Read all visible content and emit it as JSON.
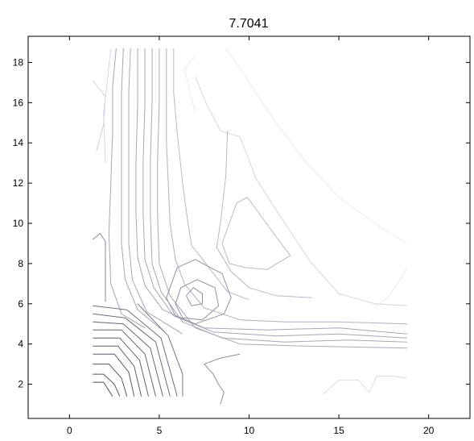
{
  "chart_data": {
    "type": "contour",
    "title": "7.7041",
    "xlabel": "",
    "ylabel": "",
    "xlim": [
      -2.3,
      22.3
    ],
    "ylim": [
      0.3,
      19.3
    ],
    "xticks": [
      0,
      5,
      10,
      15,
      20
    ],
    "yticks": [
      2,
      4,
      6,
      8,
      10,
      12,
      14,
      16,
      18
    ],
    "grid": false,
    "line_color_dark": "#505060",
    "line_color_light": "#e4eaf6",
    "contours": [
      {
        "level": 1,
        "points": [
          [
            1.3,
            17.1
          ],
          [
            2.0,
            16.3
          ],
          [
            1.9,
            14.9
          ],
          [
            1.5,
            13.6
          ]
        ]
      },
      {
        "level": 2,
        "points": [
          [
            1.3,
            9.2
          ],
          [
            1.7,
            9.5
          ],
          [
            2.0,
            9.1
          ],
          [
            2.0,
            7.6
          ],
          [
            2.0,
            6.1
          ]
        ]
      },
      {
        "level": 3,
        "points": [
          [
            2.3,
            18.7
          ],
          [
            2.1,
            17.0
          ],
          [
            1.9,
            15.5
          ],
          [
            2.0,
            13.0
          ]
        ]
      },
      {
        "level": 4,
        "points": [
          [
            2.6,
            18.7
          ],
          [
            2.4,
            16.8
          ],
          [
            2.4,
            14.5
          ],
          [
            2.3,
            12.0
          ],
          [
            2.2,
            9.5
          ],
          [
            2.3,
            7.0
          ],
          [
            2.9,
            5.5
          ],
          [
            4.2,
            4.8
          ]
        ]
      },
      {
        "level": 5,
        "points": [
          [
            3.0,
            18.7
          ],
          [
            2.9,
            16.5
          ],
          [
            2.9,
            14.0
          ],
          [
            2.9,
            11.5
          ],
          [
            2.9,
            9.0
          ],
          [
            3.1,
            7.2
          ],
          [
            3.8,
            5.7
          ],
          [
            5.3,
            4.6
          ]
        ]
      },
      {
        "level": 6,
        "points": [
          [
            3.4,
            18.7
          ],
          [
            3.3,
            16.5
          ],
          [
            3.3,
            14.0
          ],
          [
            3.3,
            11.5
          ],
          [
            3.3,
            9.0
          ],
          [
            3.5,
            7.2
          ],
          [
            4.3,
            5.6
          ],
          [
            6.3,
            4.5
          ]
        ]
      },
      {
        "level": 7,
        "points": [
          [
            3.8,
            18.7
          ],
          [
            3.8,
            16.0
          ],
          [
            3.7,
            13.0
          ],
          [
            3.7,
            10.5
          ],
          [
            3.8,
            8.3
          ],
          [
            4.2,
            6.9
          ],
          [
            5.2,
            5.7
          ],
          [
            7.5,
            4.8
          ],
          [
            11.0,
            4.7
          ],
          [
            15.0,
            4.8
          ],
          [
            18.8,
            4.5
          ]
        ]
      },
      {
        "level": 8,
        "points": [
          [
            4.2,
            18.7
          ],
          [
            4.2,
            16.0
          ],
          [
            4.1,
            13.0
          ],
          [
            4.1,
            10.5
          ],
          [
            4.2,
            8.2
          ],
          [
            4.7,
            6.8
          ],
          [
            5.8,
            5.4
          ],
          [
            8.0,
            4.6
          ],
          [
            11.5,
            4.4
          ],
          [
            15.0,
            4.5
          ],
          [
            18.8,
            4.3
          ]
        ]
      },
      {
        "level": 9,
        "points": [
          [
            4.6,
            18.7
          ],
          [
            4.6,
            16.0
          ],
          [
            4.5,
            13.0
          ],
          [
            4.5,
            10.5
          ],
          [
            4.6,
            8.0
          ],
          [
            5.1,
            6.6
          ],
          [
            6.3,
            5.1
          ],
          [
            8.5,
            4.3
          ],
          [
            12.0,
            4.1
          ],
          [
            15.5,
            4.2
          ],
          [
            18.8,
            4.1
          ]
        ]
      },
      {
        "level": 10,
        "points": [
          [
            5.0,
            18.7
          ],
          [
            5.0,
            16.0
          ],
          [
            4.9,
            13.0
          ],
          [
            4.9,
            10.5
          ],
          [
            5.0,
            8.0
          ],
          [
            5.6,
            6.4
          ],
          [
            7.0,
            4.8
          ],
          [
            9.5,
            4.0
          ],
          [
            13.0,
            3.9
          ],
          [
            18.8,
            3.8
          ]
        ]
      },
      {
        "level": 11,
        "points": [
          [
            5.4,
            18.7
          ],
          [
            5.4,
            16.5
          ],
          [
            5.4,
            14.0
          ],
          [
            5.5,
            12.0
          ],
          [
            5.6,
            10.0
          ],
          [
            5.9,
            8.2
          ],
          [
            6.4,
            7.0
          ],
          [
            7.5,
            5.8
          ],
          [
            9.5,
            5.2
          ],
          [
            12.0,
            5.1
          ],
          [
            15.0,
            5.1
          ],
          [
            18.8,
            5.0
          ]
        ]
      },
      {
        "level": 12,
        "points": [
          [
            5.8,
            18.7
          ],
          [
            5.8,
            16.5
          ],
          [
            6.0,
            14.5
          ],
          [
            6.3,
            12.0
          ],
          [
            6.6,
            10.0
          ],
          [
            6.8,
            8.9
          ],
          [
            7.6,
            8.0
          ],
          [
            8.8,
            6.6
          ],
          [
            10.0,
            6.2
          ]
        ]
      },
      {
        "level": 13,
        "points": [
          [
            6.5,
            6.4
          ],
          [
            6.8,
            5.9
          ],
          [
            7.4,
            6.0
          ],
          [
            7.4,
            6.5
          ],
          [
            6.9,
            6.8
          ],
          [
            6.5,
            6.4
          ]
        ]
      },
      {
        "level": 14,
        "points": [
          [
            5.9,
            6.0
          ],
          [
            6.3,
            5.3
          ],
          [
            7.4,
            5.2
          ],
          [
            8.3,
            5.9
          ],
          [
            8.1,
            6.8
          ],
          [
            7.1,
            7.2
          ],
          [
            6.2,
            6.8
          ],
          [
            5.9,
            6.0
          ]
        ]
      },
      {
        "level": 15,
        "points": [
          [
            5.4,
            6.3
          ],
          [
            5.9,
            5.4
          ],
          [
            7.0,
            5.0
          ],
          [
            8.6,
            5.5
          ],
          [
            9.0,
            6.3
          ],
          [
            8.5,
            7.5
          ],
          [
            7.0,
            8.2
          ],
          [
            6.0,
            7.8
          ],
          [
            5.4,
            6.3
          ]
        ]
      },
      {
        "level": 16,
        "points": [
          [
            8.5,
            9.0
          ],
          [
            9.3,
            11.0
          ],
          [
            9.9,
            11.3
          ],
          [
            10.8,
            10.2
          ],
          [
            11.7,
            9.1
          ],
          [
            12.3,
            8.4
          ],
          [
            11.0,
            7.7
          ],
          [
            9.8,
            7.8
          ],
          [
            8.9,
            8.0
          ],
          [
            8.5,
            9.0
          ]
        ]
      },
      {
        "level": 17,
        "points": [
          [
            8.7,
            18.7
          ],
          [
            9.5,
            17.7
          ],
          [
            10.3,
            16.6
          ],
          [
            11.5,
            15.0
          ],
          [
            13.2,
            13.0
          ],
          [
            15.0,
            11.3
          ],
          [
            17.0,
            10.0
          ],
          [
            18.8,
            9.0
          ]
        ]
      },
      {
        "level": 18,
        "points": [
          [
            7.0,
            17.3
          ],
          [
            7.6,
            16.0
          ],
          [
            8.4,
            14.6
          ],
          [
            9.5,
            14.3
          ],
          [
            10.4,
            12.2
          ],
          [
            12.0,
            10.0
          ],
          [
            13.4,
            8.1
          ],
          [
            15.0,
            6.5
          ],
          [
            17.0,
            6.0
          ],
          [
            18.8,
            5.9
          ]
        ]
      },
      {
        "level": 19,
        "points": [
          [
            8.8,
            14.6
          ],
          [
            8.7,
            12.3
          ],
          [
            8.4,
            10.0
          ],
          [
            8.2,
            8.8
          ],
          [
            9.0,
            7.6
          ],
          [
            10.0,
            6.8
          ],
          [
            11.5,
            6.4
          ],
          [
            13.5,
            6.3
          ]
        ]
      },
      {
        "level": 20,
        "points": [
          [
            7.0,
            18.3
          ],
          [
            6.4,
            17.7
          ],
          [
            6.7,
            16.5
          ],
          [
            7.0,
            15.5
          ]
        ]
      },
      {
        "level": 21,
        "points": [
          [
            17.0,
            5.8
          ],
          [
            17.8,
            6.4
          ],
          [
            18.4,
            7.2
          ],
          [
            18.8,
            7.8
          ]
        ]
      },
      {
        "level": 22,
        "points": [
          [
            8.4,
            1.0
          ],
          [
            8.6,
            1.6
          ],
          [
            8.3,
            2.0
          ],
          [
            8.0,
            2.5
          ],
          [
            7.5,
            3.0
          ],
          [
            8.4,
            3.3
          ],
          [
            9.5,
            3.5
          ]
        ]
      },
      {
        "level": 23,
        "points": [
          [
            14.1,
            1.5
          ],
          [
            15.0,
            2.2
          ],
          [
            16.1,
            2.2
          ],
          [
            16.7,
            1.6
          ],
          [
            17.1,
            2.4
          ],
          [
            18.0,
            2.4
          ],
          [
            18.8,
            2.3
          ]
        ]
      },
      {
        "level": 24,
        "points": [
          [
            1.3,
            2.1
          ],
          [
            1.9,
            2.1
          ],
          [
            2.4,
            1.4
          ]
        ]
      },
      {
        "level": 25,
        "points": [
          [
            1.3,
            2.5
          ],
          [
            1.9,
            2.5
          ],
          [
            2.5,
            2.0
          ],
          [
            2.8,
            1.4
          ]
        ]
      },
      {
        "level": 26,
        "points": [
          [
            1.3,
            3.0
          ],
          [
            2.2,
            3.0
          ],
          [
            2.9,
            2.3
          ],
          [
            3.2,
            1.4
          ]
        ]
      },
      {
        "level": 27,
        "points": [
          [
            1.3,
            3.5
          ],
          [
            2.5,
            3.5
          ],
          [
            3.3,
            2.6
          ],
          [
            3.6,
            1.4
          ]
        ]
      },
      {
        "level": 28,
        "points": [
          [
            1.3,
            3.9
          ],
          [
            2.7,
            3.9
          ],
          [
            3.6,
            2.9
          ],
          [
            4.0,
            1.4
          ]
        ]
      },
      {
        "level": 29,
        "points": [
          [
            1.3,
            4.3
          ],
          [
            2.8,
            4.3
          ],
          [
            3.9,
            3.2
          ],
          [
            4.4,
            1.4
          ]
        ]
      },
      {
        "level": 30,
        "points": [
          [
            1.3,
            4.7
          ],
          [
            2.9,
            4.7
          ],
          [
            4.2,
            3.5
          ],
          [
            4.8,
            1.4
          ]
        ]
      },
      {
        "level": 31,
        "points": [
          [
            1.3,
            5.1
          ],
          [
            3.0,
            5.0
          ],
          [
            4.5,
            3.8
          ],
          [
            5.2,
            1.4
          ]
        ]
      },
      {
        "level": 32,
        "points": [
          [
            1.3,
            5.5
          ],
          [
            3.1,
            5.3
          ],
          [
            4.8,
            4.1
          ],
          [
            5.6,
            1.4
          ]
        ]
      },
      {
        "level": 33,
        "points": [
          [
            1.3,
            5.9
          ],
          [
            3.2,
            5.7
          ],
          [
            5.1,
            4.3
          ],
          [
            6.0,
            1.4
          ]
        ]
      },
      {
        "level": 34,
        "points": [
          [
            3.8,
            6.0
          ],
          [
            5.5,
            4.4
          ],
          [
            6.3,
            2.5
          ],
          [
            6.3,
            1.4
          ]
        ]
      }
    ]
  }
}
